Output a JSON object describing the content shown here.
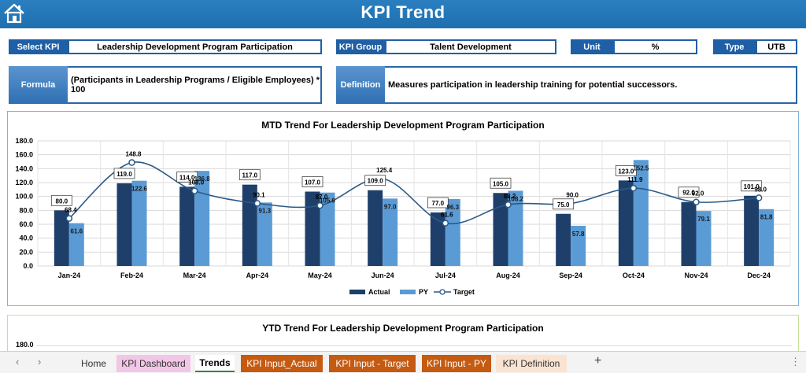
{
  "header": {
    "title": "KPI Trend"
  },
  "filters": {
    "select_kpi_label": "Select KPI",
    "select_kpi_value": "Leadership Development Program Participation",
    "kpi_group_label": "KPI Group",
    "kpi_group_value": "Talent Development",
    "unit_label": "Unit",
    "unit_value": "%",
    "type_label": "Type",
    "type_value": "UTB"
  },
  "info": {
    "formula_label": "Formula",
    "formula_value": "(Participants in Leadership Programs / Eligible Employees) * 100",
    "definition_label": "Definition",
    "definition_value": "Measures participation in leadership training for potential successors."
  },
  "colors": {
    "actual": "#1f3f6b",
    "py": "#5b9bd5",
    "target": "#2b5a86",
    "header": "#2271b5"
  },
  "chart_data": [
    {
      "type": "bar",
      "title": "MTD Trend For Leadership Development Program Participation",
      "categories": [
        "Jan-24",
        "Feb-24",
        "Mar-24",
        "Apr-24",
        "May-24",
        "Jun-24",
        "Jul-24",
        "Aug-24",
        "Sep-24",
        "Oct-24",
        "Nov-24",
        "Dec-24"
      ],
      "series": [
        {
          "name": "Actual",
          "values": [
            80.0,
            119.0,
            114.0,
            117.0,
            107.0,
            109.0,
            77.0,
            105.0,
            75.0,
            123.0,
            92.0,
            101.0
          ]
        },
        {
          "name": "PY",
          "values": [
            61.6,
            122.6,
            136.8,
            91.3,
            105.6,
            97.0,
            96.3,
            108.2,
            57.8,
            152.5,
            79.1,
            81.8
          ]
        },
        {
          "name": "Target",
          "values": [
            68.4,
            148.8,
            108.0,
            90.1,
            87.0,
            125.4,
            61.6,
            88.2,
            90.0,
            111.9,
            92.0,
            98.0
          ]
        }
      ],
      "ylim": [
        0,
        180
      ],
      "yticks": [
        "0.0",
        "20.0",
        "40.0",
        "60.0",
        "80.0",
        "100.0",
        "120.0",
        "140.0",
        "160.0",
        "180.0"
      ],
      "legend": "bottom",
      "grid": true
    },
    {
      "type": "bar",
      "title": "YTD Trend For Leadership Development Program Participation",
      "yticks": [
        "180.0"
      ]
    }
  ],
  "sheet_tabs": {
    "tabs": [
      "Home",
      "KPI Dashboard",
      "Trends",
      "KPI Input_Actual",
      "KPI Input - Target",
      "KPI Input - PY",
      "KPI Definition"
    ],
    "add": "+",
    "prev": "‹",
    "next": "›"
  }
}
